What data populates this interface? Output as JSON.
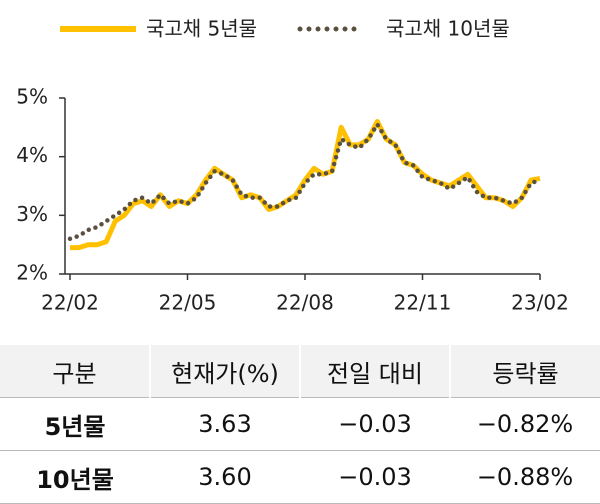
{
  "chart_data": {
    "type": "line",
    "categories": [
      "22/02",
      null,
      null,
      null,
      null,
      null,
      null,
      null,
      null,
      null,
      null,
      null,
      null,
      "22/05",
      null,
      null,
      null,
      null,
      null,
      null,
      null,
      null,
      null,
      null,
      null,
      null,
      "22/08",
      null,
      null,
      null,
      null,
      null,
      null,
      null,
      null,
      null,
      null,
      null,
      null,
      "22/11",
      null,
      null,
      null,
      null,
      null,
      null,
      null,
      null,
      null,
      null,
      null,
      null,
      "23/02"
    ],
    "series": [
      {
        "name": "국고채 5년물",
        "color": "#ffc000",
        "style": "solid",
        "values": [
          2.45,
          2.45,
          2.5,
          2.5,
          2.55,
          2.9,
          3.0,
          3.2,
          3.25,
          3.15,
          3.35,
          3.15,
          3.25,
          3.2,
          3.35,
          3.6,
          3.8,
          3.7,
          3.6,
          3.3,
          3.35,
          3.3,
          3.1,
          3.15,
          3.25,
          3.35,
          3.6,
          3.8,
          3.7,
          3.75,
          4.5,
          4.2,
          4.2,
          4.3,
          4.6,
          4.3,
          4.2,
          3.9,
          3.85,
          3.7,
          3.6,
          3.55,
          3.5,
          3.6,
          3.7,
          3.5,
          3.3,
          3.3,
          3.25,
          3.15,
          3.3,
          3.6,
          3.63
        ]
      },
      {
        "name": "국고채 10년물",
        "color": "#595040",
        "style": "dotted",
        "values": [
          2.6,
          2.65,
          2.75,
          2.8,
          2.9,
          3.0,
          3.1,
          3.25,
          3.3,
          3.2,
          3.35,
          3.2,
          3.25,
          3.2,
          3.3,
          3.55,
          3.75,
          3.7,
          3.6,
          3.35,
          3.3,
          3.3,
          3.15,
          3.15,
          3.25,
          3.3,
          3.55,
          3.7,
          3.7,
          3.75,
          4.3,
          4.2,
          4.15,
          4.3,
          4.55,
          4.3,
          4.2,
          3.9,
          3.85,
          3.65,
          3.6,
          3.55,
          3.45,
          3.55,
          3.65,
          3.4,
          3.3,
          3.3,
          3.25,
          3.2,
          3.3,
          3.55,
          3.6
        ]
      }
    ],
    "ylim": [
      2,
      5
    ],
    "yticks": [
      {
        "value": 2,
        "label": "2%"
      },
      {
        "value": 3,
        "label": "3%"
      },
      {
        "value": 4,
        "label": "4%"
      },
      {
        "value": 5,
        "label": "5%"
      }
    ],
    "legend": "top"
  },
  "table": {
    "header": [
      "구분",
      "현재가(%)",
      "전일 대비",
      "등락률"
    ],
    "rows": [
      [
        "5년물",
        "3.63",
        "−0.03",
        "−0.82%"
      ],
      [
        "10년물",
        "3.60",
        "−0.03",
        "−0.88%"
      ]
    ]
  }
}
